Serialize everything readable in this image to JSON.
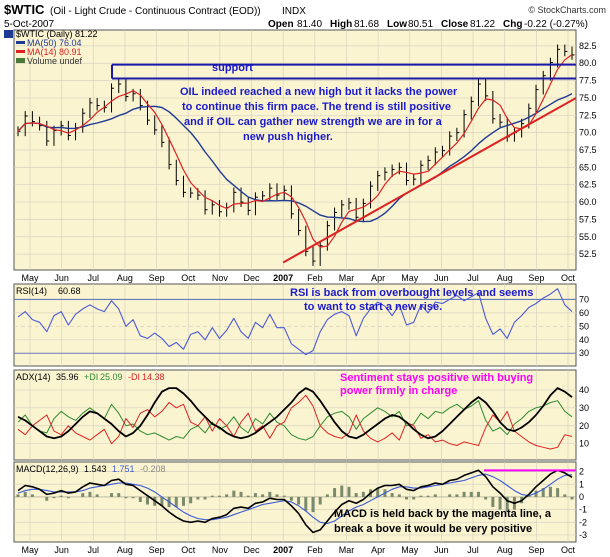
{
  "colors": {
    "price_bg": "#fbf4d0",
    "panel_bg": "#fbf4d0",
    "grid": "#d7d2c0",
    "price_bar": "#cc0000",
    "ma50": "#1f3a93",
    "ma14": "#dd2222",
    "support": "#1a1aaa",
    "trendline": "#dd2222",
    "rsi": "#4a5ad8",
    "adx": "#000000",
    "pdi": "#2e8b2e",
    "mdi": "#dd2222",
    "macd": "#000000",
    "signal": "#3a5ad8",
    "hist": "#7a8a6a",
    "magenta": "#ff00ff",
    "ann_blue": "#1a1acc",
    "ann_magenta": "#ff00ff"
  },
  "header": {
    "symbol": "$WTIC",
    "desc": "(Oil - Light Crude - Continuous Contract (EOD))",
    "exchange": "INDX",
    "watermark": "© StockCharts.com",
    "date": "5-Oct-2007",
    "open_label": "Open",
    "open": "81.40",
    "high_label": "High",
    "high": "81.68",
    "low_label": "Low",
    "low": "80.51",
    "close_label": "Close",
    "close": "81.22",
    "chg_label": "Chg",
    "chg": "-0.22 (-0.27%)"
  },
  "legend": {
    "main": "$WTIC (Daily) 81.22",
    "ma50": "MA(50) 76.04",
    "ma14": "MA(14) 80.91",
    "volume": "Volume undef"
  },
  "chart_data": {
    "type": "line",
    "x_labels": [
      "May",
      "Jun",
      "Jul",
      "Aug",
      "Sep",
      "Oct",
      "Nov",
      "Dec",
      "2007",
      "Feb",
      "Mar",
      "Apr",
      "May",
      "Jun",
      "Jul",
      "Aug",
      "Sep",
      "Oct"
    ],
    "price": {
      "name": "$WTIC (Daily)",
      "y_ticks": [
        52.5,
        55.0,
        57.5,
        60.0,
        62.5,
        65.0,
        67.5,
        70.0,
        72.5,
        75.0,
        77.5,
        80.0,
        82.5
      ],
      "ylim": [
        50.5,
        84.5
      ],
      "close": [
        70.2,
        72.4,
        71.6,
        71.0,
        68.8,
        70.3,
        71.0,
        69.6,
        70.7,
        72.8,
        74.3,
        73.9,
        73.6,
        76.4,
        77.0,
        75.2,
        75.6,
        73.9,
        71.8,
        70.4,
        68.6,
        65.4,
        63.1,
        61.4,
        61.3,
        61.0,
        58.9,
        59.6,
        58.6,
        59.2,
        61.4,
        60.0,
        58.8,
        60.7,
        60.9,
        62.0,
        61.0,
        61.7,
        58.3,
        55.9,
        52.9,
        51.5,
        53.7,
        56.6,
        58.5,
        59.6,
        59.9,
        57.8,
        59.8,
        62.3,
        63.8,
        64.3,
        64.7,
        65.0,
        63.1,
        63.3,
        65.3,
        66.0,
        67.2,
        67.4,
        69.5,
        70.0,
        72.6,
        74.5,
        77.0,
        75.3,
        72.0,
        71.5,
        69.4,
        70.0,
        71.3,
        73.5,
        76.2,
        78.2,
        80.1,
        82.0,
        81.7,
        81.2
      ],
      "support_level": 77.8,
      "upper_line": 79.8,
      "trendline": {
        "from_label": "2007",
        "from_value": 51.3,
        "to_label": "Oct",
        "to_value": 75.0
      }
    },
    "rsi": {
      "name": "RSI(14)",
      "value": "60.68",
      "y_ticks": [
        30,
        40,
        50,
        60,
        70
      ],
      "ylim": [
        22,
        80
      ],
      "values": [
        57,
        61,
        55,
        53,
        46,
        58,
        61,
        51,
        59,
        63,
        66,
        63,
        61,
        69,
        63,
        50,
        55,
        43,
        41,
        45,
        41,
        35,
        38,
        33,
        44,
        46,
        40,
        49,
        41,
        47,
        56,
        46,
        41,
        53,
        49,
        59,
        49,
        49,
        37,
        33,
        29,
        32,
        46,
        55,
        59,
        61,
        58,
        43,
        56,
        63,
        68,
        65,
        58,
        66,
        51,
        53,
        66,
        60,
        68,
        67,
        70,
        73,
        69,
        72,
        75,
        56,
        44,
        48,
        41,
        53,
        58,
        64,
        67,
        71,
        74,
        78,
        66,
        61
      ]
    },
    "adx": {
      "adx_label": "ADX(14)",
      "adx_value": "35.96",
      "pdi_label": "+DI",
      "pdi_value": "25.09",
      "mdi_label": "-DI",
      "mdi_value": "14.38",
      "y_ticks": [
        10,
        20,
        30,
        40
      ],
      "ylim": [
        2,
        50
      ],
      "adx": [
        25,
        23,
        20,
        17,
        14,
        13,
        14,
        17,
        21,
        25,
        28,
        27,
        24,
        21,
        17,
        14,
        16,
        20,
        26,
        33,
        39,
        41,
        41,
        38,
        34,
        29,
        25,
        21,
        19,
        16,
        14,
        13,
        14,
        16,
        19,
        22,
        25,
        29,
        33,
        38,
        41,
        39,
        34,
        28,
        22,
        17,
        14,
        13,
        15,
        18,
        21,
        24,
        26,
        25,
        22,
        18,
        15,
        13,
        14,
        17,
        21,
        25,
        29,
        33,
        36,
        33,
        28,
        22,
        18,
        17,
        19,
        22,
        26,
        31,
        37,
        41,
        39,
        36
      ],
      "pdi": [
        22,
        26,
        20,
        17,
        16,
        24,
        28,
        25,
        23,
        27,
        30,
        27,
        24,
        32,
        27,
        20,
        21,
        17,
        15,
        16,
        14,
        12,
        14,
        13,
        18,
        20,
        16,
        22,
        18,
        20,
        25,
        19,
        16,
        24,
        21,
        27,
        22,
        20,
        15,
        13,
        12,
        14,
        20,
        25,
        27,
        28,
        25,
        18,
        24,
        27,
        30,
        28,
        25,
        28,
        20,
        21,
        27,
        24,
        28,
        27,
        30,
        32,
        29,
        31,
        34,
        23,
        17,
        19,
        15,
        21,
        24,
        28,
        30,
        31,
        33,
        34,
        28,
        25
      ],
      "mdi": [
        18,
        15,
        20,
        23,
        26,
        17,
        15,
        20,
        16,
        14,
        12,
        15,
        18,
        10,
        14,
        24,
        19,
        27,
        29,
        25,
        28,
        33,
        30,
        32,
        22,
        20,
        25,
        17,
        24,
        20,
        14,
        22,
        27,
        17,
        20,
        13,
        20,
        22,
        30,
        33,
        37,
        31,
        20,
        16,
        14,
        13,
        16,
        26,
        17,
        13,
        11,
        13,
        16,
        12,
        22,
        20,
        13,
        15,
        11,
        12,
        10,
        9,
        11,
        10,
        9,
        19,
        26,
        22,
        28,
        17,
        14,
        11,
        9,
        8,
        7,
        8,
        15,
        14
      ]
    },
    "macd": {
      "label": "MACD(12,26,9)",
      "macd_value": "1.543",
      "signal_value": "1.751",
      "hist_value": "-0.208",
      "y_ticks": [
        -3,
        -2,
        -1,
        0,
        1,
        2
      ],
      "ylim": [
        -3.4,
        2.6
      ],
      "macd": [
        0.5,
        0.9,
        0.8,
        0.6,
        0.2,
        0.3,
        0.5,
        0.3,
        0.4,
        0.8,
        1.1,
        1.0,
        0.9,
        1.3,
        1.4,
        1.0,
        0.9,
        0.5,
        0.1,
        -0.3,
        -0.7,
        -1.2,
        -1.6,
        -1.9,
        -2.0,
        -1.9,
        -2.0,
        -1.7,
        -1.6,
        -1.4,
        -0.9,
        -0.8,
        -0.9,
        -0.5,
        -0.4,
        -0.1,
        -0.2,
        -0.2,
        -0.7,
        -1.3,
        -2.2,
        -2.8,
        -2.6,
        -1.9,
        -1.2,
        -0.6,
        -0.3,
        -0.5,
        -0.2,
        0.3,
        0.7,
        0.9,
        0.9,
        1.0,
        0.6,
        0.5,
        0.8,
        0.9,
        1.1,
        1.0,
        1.3,
        1.4,
        1.7,
        1.9,
        2.1,
        1.6,
        0.8,
        0.3,
        -0.3,
        -0.5,
        -0.3,
        0.2,
        0.8,
        1.3,
        1.8,
        2.1,
        1.9,
        1.55
      ],
      "signal": [
        0.3,
        0.5,
        0.6,
        0.6,
        0.5,
        0.4,
        0.4,
        0.4,
        0.4,
        0.5,
        0.7,
        0.8,
        0.9,
        1.0,
        1.1,
        1.1,
        1.0,
        0.9,
        0.7,
        0.4,
        0.0,
        -0.4,
        -0.8,
        -1.2,
        -1.5,
        -1.7,
        -1.8,
        -1.8,
        -1.7,
        -1.6,
        -1.4,
        -1.2,
        -1.0,
        -0.8,
        -0.6,
        -0.5,
        -0.4,
        -0.3,
        -0.4,
        -0.7,
        -1.1,
        -1.6,
        -2.0,
        -2.1,
        -1.9,
        -1.5,
        -1.1,
        -0.8,
        -0.6,
        -0.3,
        0.0,
        0.3,
        0.6,
        0.8,
        0.8,
        0.7,
        0.7,
        0.8,
        0.9,
        1.0,
        1.1,
        1.2,
        1.3,
        1.5,
        1.7,
        1.8,
        1.6,
        1.3,
        0.9,
        0.5,
        0.2,
        0.1,
        0.3,
        0.6,
        1.0,
        1.4,
        1.7,
        1.75
      ],
      "magenta_level": 2.1
    }
  },
  "annotations": {
    "support": "support",
    "price_note": [
      "OIL indeed reached a new high but it lacks the power",
      "to continue this firm pace. The trend is still positive",
      "and if OIL can gather new strength we are in for a",
      "new push higher."
    ],
    "rsi_note": [
      "RSI is back from overbought levels  and seems",
      "to want to start a new rise."
    ],
    "adx_note": [
      "Sentiment stays positive with buying",
      "power firmly in charge"
    ],
    "macd_note": [
      "MACD is held back by the magenta line, a",
      "break a bove it would be very positive"
    ]
  }
}
